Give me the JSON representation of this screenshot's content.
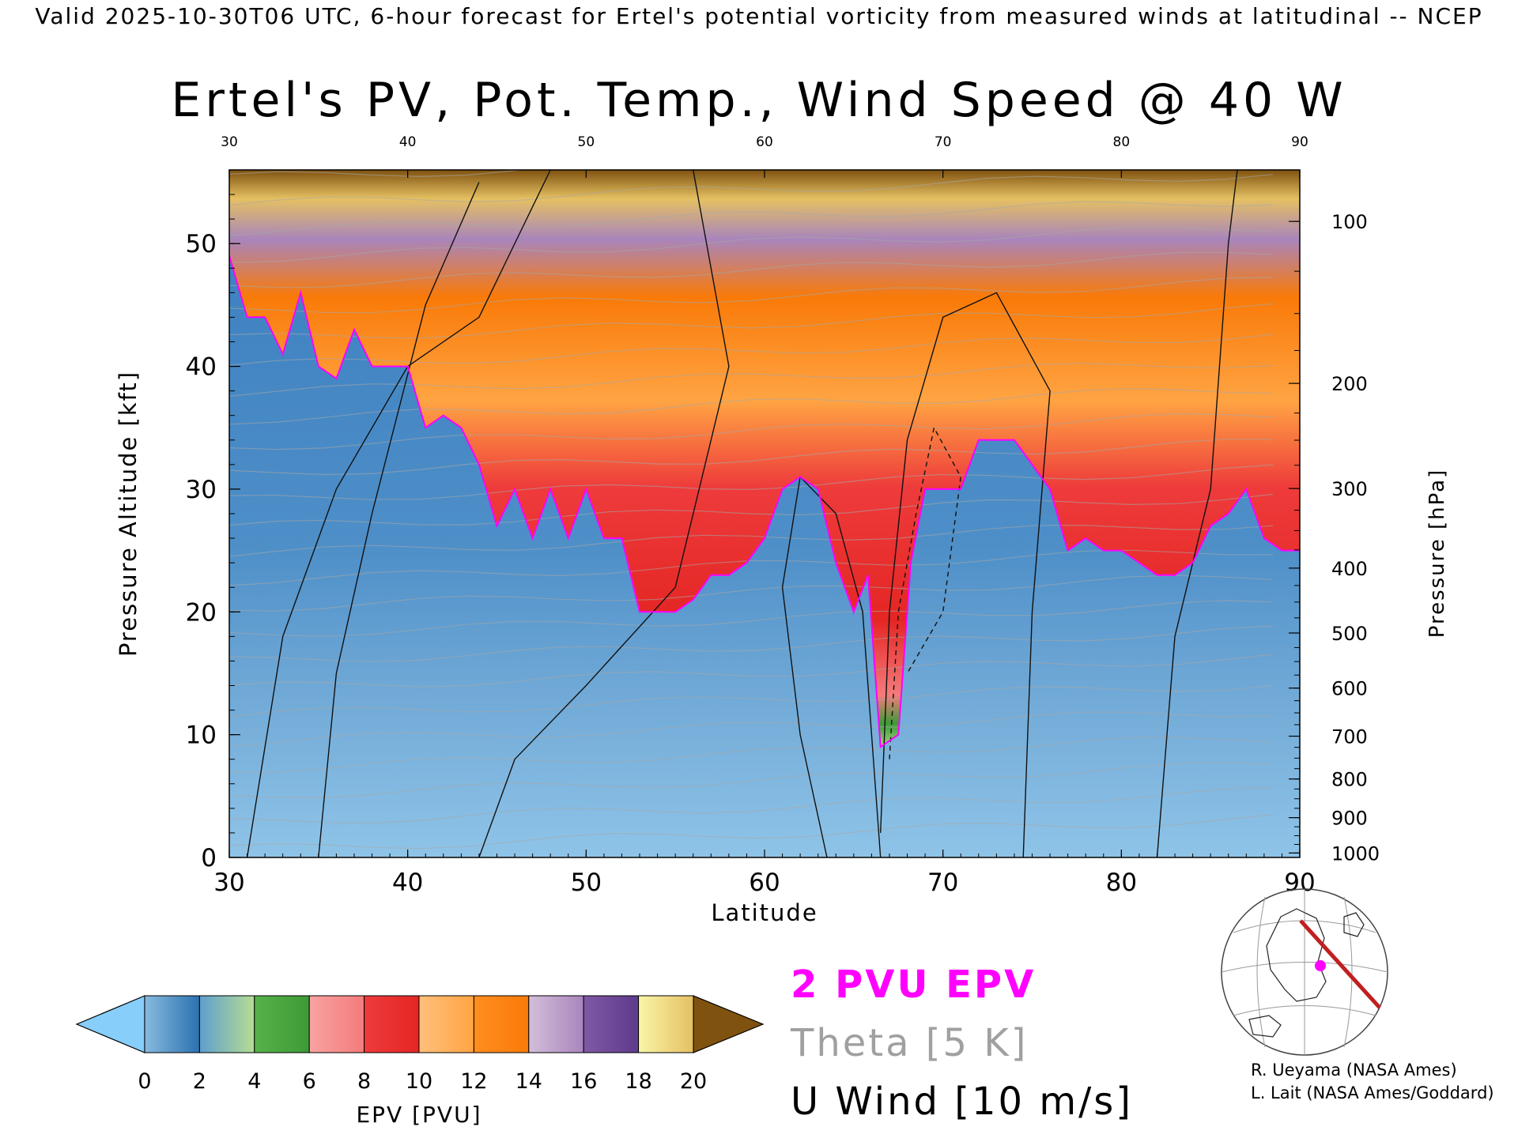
{
  "header": "Valid 2025-10-30T06 UTC, 6-hour forecast for Ertel's potential vorticity from measured winds at latitudinal -- NCEP",
  "chart_data": {
    "type": "heatmap",
    "title": "Ertel's PV, Pot. Temp., Wind Speed @ 40 W",
    "xlabel": "Latitude",
    "ylabel": "Pressure Altitude [kft]",
    "y2label": "Pressure [hPa]",
    "xlim": [
      30,
      90
    ],
    "ylim": [
      0,
      56
    ],
    "x_ticks": [
      "30",
      "40",
      "50",
      "60",
      "70",
      "80",
      "90"
    ],
    "y_ticks": [
      "0",
      "10",
      "20",
      "30",
      "40",
      "50"
    ],
    "pressure_ticks": [
      {
        "hpa": 100,
        "label": "100"
      },
      {
        "hpa": 200,
        "label": "200"
      },
      {
        "hpa": 300,
        "label": "300"
      },
      {
        "hpa": 400,
        "label": "400"
      },
      {
        "hpa": 500,
        "label": "500"
      },
      {
        "hpa": 600,
        "label": "600"
      },
      {
        "hpa": 700,
        "label": "700"
      },
      {
        "hpa": 800,
        "label": "800"
      },
      {
        "hpa": 900,
        "label": "900"
      },
      {
        "hpa": 1000,
        "label": "1000"
      }
    ],
    "tropopause_2pvu_kft": [
      {
        "lat": 30,
        "kft": 49
      },
      {
        "lat": 31,
        "kft": 44
      },
      {
        "lat": 32,
        "kft": 44
      },
      {
        "lat": 33,
        "kft": 41
      },
      {
        "lat": 34,
        "kft": 46
      },
      {
        "lat": 35,
        "kft": 40
      },
      {
        "lat": 36,
        "kft": 39
      },
      {
        "lat": 37,
        "kft": 43
      },
      {
        "lat": 38,
        "kft": 40
      },
      {
        "lat": 39,
        "kft": 40
      },
      {
        "lat": 40,
        "kft": 40
      },
      {
        "lat": 41,
        "kft": 35
      },
      {
        "lat": 42,
        "kft": 36
      },
      {
        "lat": 43,
        "kft": 35
      },
      {
        "lat": 44,
        "kft": 32
      },
      {
        "lat": 45,
        "kft": 27
      },
      {
        "lat": 46,
        "kft": 30
      },
      {
        "lat": 47,
        "kft": 26
      },
      {
        "lat": 48,
        "kft": 30
      },
      {
        "lat": 49,
        "kft": 26
      },
      {
        "lat": 50,
        "kft": 30
      },
      {
        "lat": 51,
        "kft": 26
      },
      {
        "lat": 52,
        "kft": 26
      },
      {
        "lat": 53,
        "kft": 20
      },
      {
        "lat": 54,
        "kft": 20
      },
      {
        "lat": 55,
        "kft": 20
      },
      {
        "lat": 56,
        "kft": 21
      },
      {
        "lat": 57,
        "kft": 23
      },
      {
        "lat": 58,
        "kft": 23
      },
      {
        "lat": 59,
        "kft": 24
      },
      {
        "lat": 60,
        "kft": 26
      },
      {
        "lat": 61,
        "kft": 30
      },
      {
        "lat": 62,
        "kft": 31
      },
      {
        "lat": 63,
        "kft": 30
      },
      {
        "lat": 64,
        "kft": 24
      },
      {
        "lat": 65,
        "kft": 20
      },
      {
        "lat": 65.8,
        "kft": 23
      },
      {
        "lat": 66.5,
        "kft": 9
      },
      {
        "lat": 67.5,
        "kft": 10
      },
      {
        "lat": 68.2,
        "kft": 24
      },
      {
        "lat": 69,
        "kft": 30
      },
      {
        "lat": 70,
        "kft": 30
      },
      {
        "lat": 71,
        "kft": 30
      },
      {
        "lat": 72,
        "kft": 34
      },
      {
        "lat": 74,
        "kft": 34
      },
      {
        "lat": 75,
        "kft": 32
      },
      {
        "lat": 76,
        "kft": 30
      },
      {
        "lat": 77,
        "kft": 25
      },
      {
        "lat": 78,
        "kft": 26
      },
      {
        "lat": 79,
        "kft": 25
      },
      {
        "lat": 80,
        "kft": 25
      },
      {
        "lat": 81,
        "kft": 24
      },
      {
        "lat": 82,
        "kft": 23
      },
      {
        "lat": 83,
        "kft": 23
      },
      {
        "lat": 84,
        "kft": 24
      },
      {
        "lat": 85,
        "kft": 27
      },
      {
        "lat": 86,
        "kft": 28
      },
      {
        "lat": 87,
        "kft": 30
      },
      {
        "lat": 88,
        "kft": 26
      },
      {
        "lat": 89,
        "kft": 25
      },
      {
        "lat": 90,
        "kft": 25
      }
    ],
    "colorbar": {
      "label": "EPV [PVU]",
      "tick_labels": [
        "0",
        "2",
        "4",
        "6",
        "8",
        "10",
        "12",
        "14",
        "16",
        "18",
        "20"
      ],
      "under_color": "#87CEFA",
      "over_color": "#7F5210",
      "bins": [
        {
          "from": 0,
          "to": 2,
          "colors": [
            "#87BBDE",
            "#2B71B0"
          ]
        },
        {
          "from": 2,
          "to": 4,
          "colors": [
            "#5E9FCD",
            "#B6DD94"
          ]
        },
        {
          "from": 4,
          "to": 6,
          "colors": [
            "#58B14A",
            "#3D9B36"
          ]
        },
        {
          "from": 6,
          "to": 8,
          "colors": [
            "#F9A2A2",
            "#F47B7B"
          ]
        },
        {
          "from": 8,
          "to": 10,
          "colors": [
            "#EE3B3B",
            "#E42624"
          ]
        },
        {
          "from": 10,
          "to": 12,
          "colors": [
            "#FFC07B",
            "#FFA443"
          ]
        },
        {
          "from": 12,
          "to": 14,
          "colors": [
            "#FF8E1E",
            "#F97A08"
          ]
        },
        {
          "from": 14,
          "to": 16,
          "colors": [
            "#D4BEDA",
            "#A985BC"
          ]
        },
        {
          "from": 16,
          "to": 18,
          "colors": [
            "#8059A5",
            "#5E3A8C"
          ]
        },
        {
          "from": 18,
          "to": 20,
          "colors": [
            "#F9F5A8",
            "#E5C062"
          ]
        }
      ]
    },
    "legend": [
      {
        "text": "2 PVU EPV",
        "color": "#FF00FF"
      },
      {
        "text": "Theta [5 K]",
        "color": "#A0A0A0"
      },
      {
        "text": "U Wind [10 m/s]",
        "color": "#000000"
      }
    ]
  },
  "credits": [
    "R. Ueyama (NASA Ames)",
    "L. Lait (NASA Ames/Goddard)"
  ]
}
